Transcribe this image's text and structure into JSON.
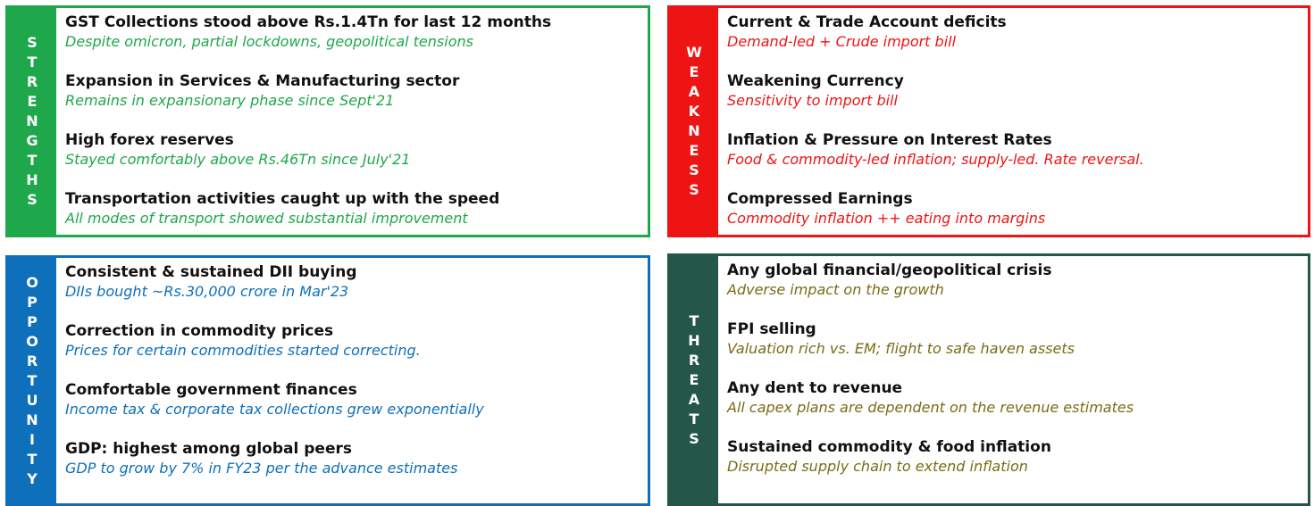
{
  "strengths": {
    "label": "STRENGTHS",
    "color": "#1ea84b",
    "items": [
      {
        "title": "GST Collections stood above Rs.1.4Tn for last 12 months",
        "detail": "Despite omicron, partial lockdowns, geopolitical tensions"
      },
      {
        "title": "Expansion in Services & Manufacturing sector",
        "detail": "Remains in expansionary phase since Sept'21"
      },
      {
        "title": "High forex reserves",
        "detail": "Stayed comfortably above Rs.46Tn since July'21"
      },
      {
        "title": "Transportation activities caught up with the speed",
        "detail": "All modes of transport showed substantial improvement"
      }
    ]
  },
  "weakness": {
    "label": "WEAKNESS",
    "color": "#ef1414",
    "items": [
      {
        "title": "Current & Trade Account deficits",
        "detail": "Demand-led + Crude import bill"
      },
      {
        "title": "Weakening Currency",
        "detail": "Sensitivity to import bill"
      },
      {
        "title": "Inflation & Pressure on Interest Rates",
        "detail": "Food & commodity-led inflation; supply-led. Rate reversal."
      },
      {
        "title": "Compressed Earnings",
        "detail": "Commodity inflation ++ eating into margins"
      }
    ]
  },
  "opportunity": {
    "label": "OPPORTUNITY",
    "color": "#0e6fbb",
    "items": [
      {
        "title": "Consistent & sustained DII buying",
        "detail": "DIIs bought ~Rs.30,000 crore in Mar'23"
      },
      {
        "title": "Correction in commodity prices",
        "detail": "Prices for certain commodities started correcting."
      },
      {
        "title": "Comfortable government finances",
        "detail": "Income tax & corporate tax collections grew exponentially"
      },
      {
        "title": "GDP: highest among global peers",
        "detail": "GDP to grow by 7% in FY23 per the advance estimates"
      }
    ]
  },
  "threats": {
    "label": "THREATS",
    "color": "#24574a",
    "items": [
      {
        "title": "Any global financial/geopolitical crisis",
        "detail": "Adverse impact on the growth"
      },
      {
        "title": "FPI selling",
        "detail": "Valuation rich vs. EM; flight to safe haven assets"
      },
      {
        "title": "Any dent to revenue",
        "detail": "All capex plans are dependent on the revenue estimates"
      },
      {
        "title": "Sustained commodity & food inflation",
        "detail": "Disrupted supply chain to extend inflation"
      }
    ]
  }
}
